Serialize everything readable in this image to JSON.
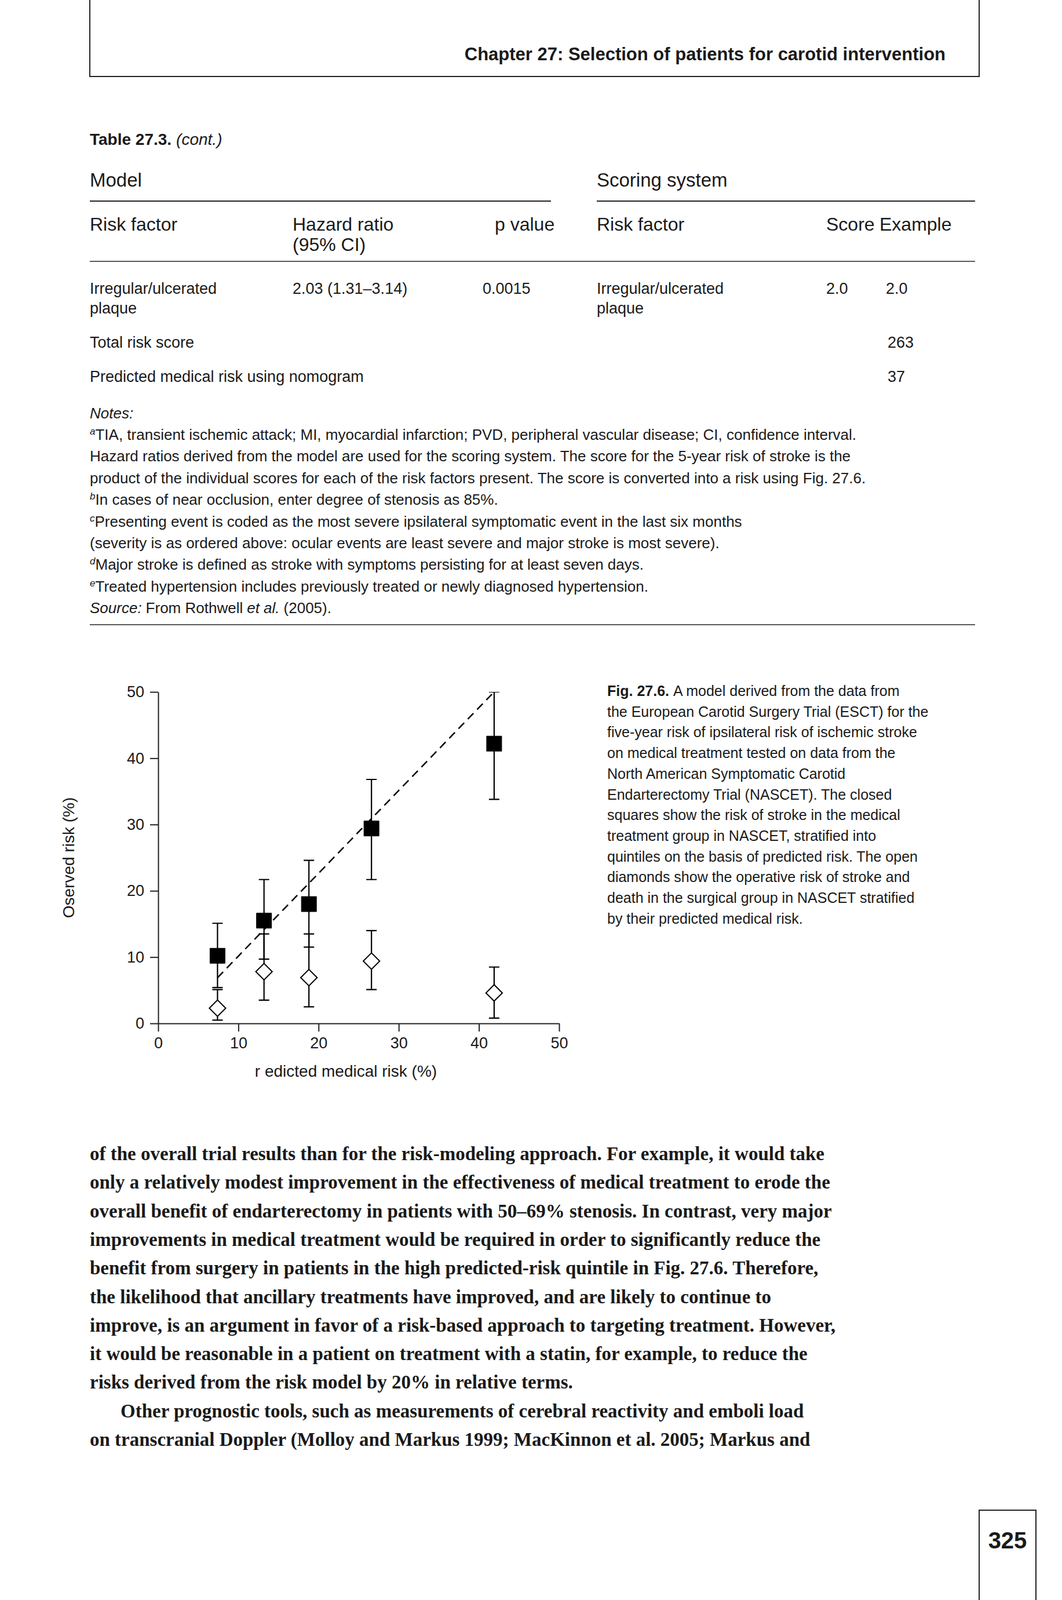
{
  "header": {
    "title": "Chapter 27: Selection of patients for carotid intervention"
  },
  "table": {
    "title": "Table 27.3.",
    "title_note": "(cont.)",
    "groups": [
      "Model",
      "Scoring system"
    ],
    "columns": [
      [
        "Risk factor"
      ],
      [
        "Hazard ratio",
        "(95% CI)"
      ],
      [
        "p value"
      ],
      [
        "Risk factor"
      ],
      [
        "Score"
      ],
      [
        "Example"
      ]
    ],
    "rows": [
      [
        [
          "Irregular/ulcerated",
          "plaque"
        ],
        [
          "2.03 (1.31–3.14)"
        ],
        [
          "0.0015"
        ],
        [
          "Irregular/ulcerated",
          "plaque"
        ],
        [
          "2.0"
        ],
        [
          "2.0"
        ]
      ]
    ],
    "totals": [
      {
        "label": "Total risk score",
        "value": "263"
      },
      {
        "label": "Predicted medical risk using nomogram",
        "value": "37"
      }
    ]
  },
  "notes": {
    "title": "Notes:",
    "items": [
      {
        "mark": "a",
        "lines": [
          "TIA, transient ischemic attack; MI, myocardial infarction; PVD, peripheral vascular disease; CI, confidence interval.",
          "Hazard ratios derived from the model are used for the scoring system. The score for the 5-year risk of stroke is the",
          "product of the individual scores for each of the risk factors present. The score is converted into a risk using Fig. 27.6."
        ]
      },
      {
        "mark": "b",
        "lines": [
          "In cases of near occlusion, enter degree of stenosis as 85%."
        ]
      },
      {
        "mark": "c",
        "lines": [
          "Presenting event is coded as the most severe ipsilateral symptomatic event in the last six months",
          "(severity is as ordered above: ocular events are least severe and major stroke is most severe)."
        ]
      },
      {
        "mark": "d",
        "lines": [
          "Major stroke is defined as stroke with symptoms persisting for at least seven days."
        ]
      },
      {
        "mark": "e",
        "lines": [
          "Treated hypertension includes previously treated or newly diagnosed hypertension."
        ]
      }
    ],
    "source": [
      "Source:",
      "From Rothwell",
      "et al.",
      "(2005)."
    ]
  },
  "chart_data": {
    "type": "scatter",
    "x_label": "r edicted medical risk (%)",
    "y_label": "Oserved risk (%)",
    "xlim": [
      0,
      50
    ],
    "ylim": [
      0,
      50
    ],
    "xticks": [
      0,
      10,
      20,
      30,
      40,
      50
    ],
    "yticks": [
      0,
      10,
      20,
      30,
      40,
      50
    ],
    "grid": false,
    "series": [
      {
        "type": "scatter",
        "marker": "square",
        "color": "#000000",
        "x": [
          7.4,
          13.2,
          18.8,
          26.6,
          41.9
        ],
        "values": [
          10.2,
          15.5,
          18.0,
          29.4,
          42.2
        ],
        "ci_low": [
          5.4,
          9.7,
          11.5,
          21.7,
          33.8
        ],
        "ci_high": [
          15.1,
          21.7,
          24.6,
          36.8,
          50.0
        ]
      },
      {
        "type": "scatter",
        "marker": "diamond-open",
        "color": "#000000",
        "x": [
          7.4,
          13.2,
          18.8,
          26.6,
          41.9
        ],
        "values": [
          2.3,
          7.8,
          6.9,
          9.4,
          4.6
        ],
        "ci_low": [
          0.5,
          3.5,
          2.5,
          5.1,
          0.8
        ],
        "ci_high": [
          5.1,
          13.5,
          13.5,
          14.0,
          8.5
        ]
      },
      {
        "type": "line",
        "line_style": "dashed",
        "color": "#000000",
        "x": [
          7.4,
          41.9
        ],
        "values": [
          6.9,
          50.0
        ]
      }
    ]
  },
  "figure": {
    "label": "Fig. 27.6.",
    "caption_lines": [
      "A model derived from the data from",
      "the European Carotid Surgery Trial (ESCT) for the",
      "five-year risk of ipsilateral risk of ischemic stroke",
      "on medical treatment tested on data from the",
      "North American Symptomatic Carotid",
      "Endarterectomy Trial (NASCET). The closed",
      "squares show the risk of stroke in the medical",
      "treatment group in NASCET, stratified into",
      "quintiles on the basis of predicted risk. The open",
      "diamonds show the operative risk of stroke and",
      "death in the surgical group in NASCET stratified",
      "by their predicted medical risk."
    ]
  },
  "body": {
    "paragraphs": [
      [
        "of the overall trial results than for the risk-modeling approach. For example, it would take",
        "only a relatively modest improvement in the effectiveness of medical treatment to erode the",
        "overall benefit of endarterectomy in patients with 50–69% stenosis. In contrast, very major",
        "improvements in medical treatment would be required in order to significantly reduce the",
        "benefit from surgery in patients in the high predicted-risk quintile in Fig. 27.6. Therefore,",
        "the likelihood that ancillary treatments have improved, and are likely to continue to",
        "improve, is an argument in favor of a risk-based approach to targeting treatment. However,",
        "it would be reasonable in a patient on treatment with a statin, for example, to reduce the",
        "risks derived from the risk model by 20% in relative terms."
      ],
      [
        "Other prognostic tools, such as measurements of cerebral reactivity and emboli load",
        "on transcranial Doppler (Molloy and Markus 1999; MacKinnon et al. 2005; Markus and"
      ]
    ]
  },
  "page_number": "325"
}
